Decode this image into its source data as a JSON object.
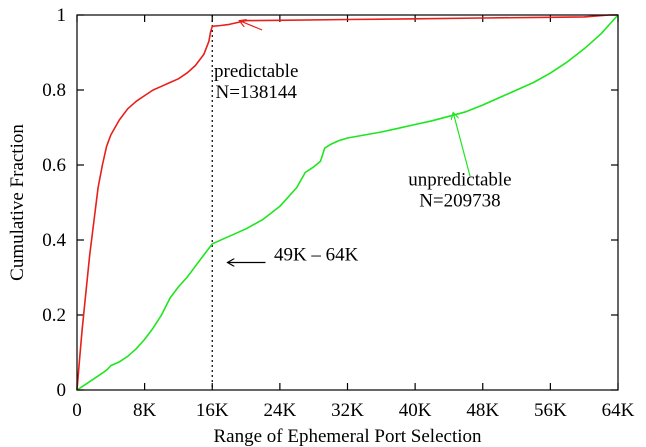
{
  "chart_data": {
    "type": "line",
    "xlabel": "Range of Ephemeral Port Selection",
    "ylabel": "Cumulative Fraction",
    "xlim": [
      0,
      64
    ],
    "ylim": [
      0,
      1
    ],
    "x_unit": "K ports",
    "xticks": [
      0,
      8,
      16,
      24,
      32,
      40,
      48,
      56,
      64
    ],
    "xtick_labels": [
      "0",
      "8K",
      "16K",
      "24K",
      "32K",
      "40K",
      "48K",
      "56K",
      "64K"
    ],
    "yticks": [
      0,
      0.2,
      0.4,
      0.6,
      0.8,
      1
    ],
    "ytick_labels": [
      "0",
      "0.2",
      "0.4",
      "0.6",
      "0.8",
      "1"
    ],
    "grid": false,
    "series": [
      {
        "name": "predictable",
        "color": "#e8201a",
        "x": [
          0,
          0.3,
          0.6,
          1,
          1.5,
          2,
          2.5,
          3,
          3.5,
          4,
          5,
          6,
          7,
          8,
          9,
          10,
          11,
          12,
          13,
          14,
          15,
          15.6,
          15.8,
          16,
          17,
          18,
          19,
          20,
          24,
          32,
          40,
          48,
          56,
          60,
          63,
          64
        ],
        "y": [
          0,
          0.08,
          0.16,
          0.25,
          0.36,
          0.45,
          0.54,
          0.6,
          0.65,
          0.68,
          0.72,
          0.75,
          0.77,
          0.785,
          0.8,
          0.81,
          0.82,
          0.83,
          0.845,
          0.865,
          0.895,
          0.93,
          0.955,
          0.97,
          0.972,
          0.975,
          0.98,
          0.985,
          0.986,
          0.988,
          0.99,
          0.992,
          0.994,
          0.995,
          1,
          1
        ]
      },
      {
        "name": "unpredictable",
        "color": "#1ee61e",
        "x": [
          0,
          1,
          2,
          3,
          3.6,
          4,
          5,
          6,
          7,
          8,
          9,
          10,
          11,
          12,
          13,
          14,
          15,
          16,
          18,
          20,
          22,
          24,
          26,
          27,
          28,
          28.8,
          29.3,
          30,
          31,
          32,
          34,
          36,
          38,
          40,
          42,
          44,
          46,
          48,
          50,
          52,
          54,
          56,
          58,
          60,
          62,
          63,
          64
        ],
        "y": [
          0,
          0.015,
          0.03,
          0.045,
          0.055,
          0.065,
          0.075,
          0.09,
          0.11,
          0.135,
          0.165,
          0.2,
          0.245,
          0.275,
          0.3,
          0.33,
          0.36,
          0.39,
          0.41,
          0.43,
          0.455,
          0.49,
          0.54,
          0.58,
          0.595,
          0.61,
          0.645,
          0.655,
          0.665,
          0.672,
          0.68,
          0.688,
          0.698,
          0.708,
          0.718,
          0.73,
          0.742,
          0.76,
          0.78,
          0.8,
          0.82,
          0.845,
          0.875,
          0.91,
          0.95,
          0.975,
          1
        ]
      }
    ],
    "annotations": [
      {
        "id": "predictable",
        "lines": [
          "predictable",
          "N=138144"
        ],
        "color": "#e8201a",
        "text_x": 21.2,
        "text_y": 0.835,
        "arrow_from": [
          21.9,
          0.96
        ],
        "arrow_to": [
          19.2,
          0.985
        ]
      },
      {
        "id": "unpredictable",
        "lines": [
          "unpredictable",
          "N=209738"
        ],
        "color": "#1ee61e",
        "text_x": 45.3,
        "text_y": 0.545,
        "arrow_from": [
          46.5,
          0.57
        ],
        "arrow_to": [
          44.5,
          0.74
        ]
      },
      {
        "id": "range",
        "lines": [
          "49K – 64K"
        ],
        "color": "#000000",
        "text_x": 23.3,
        "text_y": 0.345,
        "arrow_from": [
          22.3,
          0.34
        ],
        "arrow_to": [
          17.8,
          0.34
        ]
      }
    ],
    "vline": {
      "x": 16,
      "style": "dotted",
      "color": "#000000"
    }
  }
}
